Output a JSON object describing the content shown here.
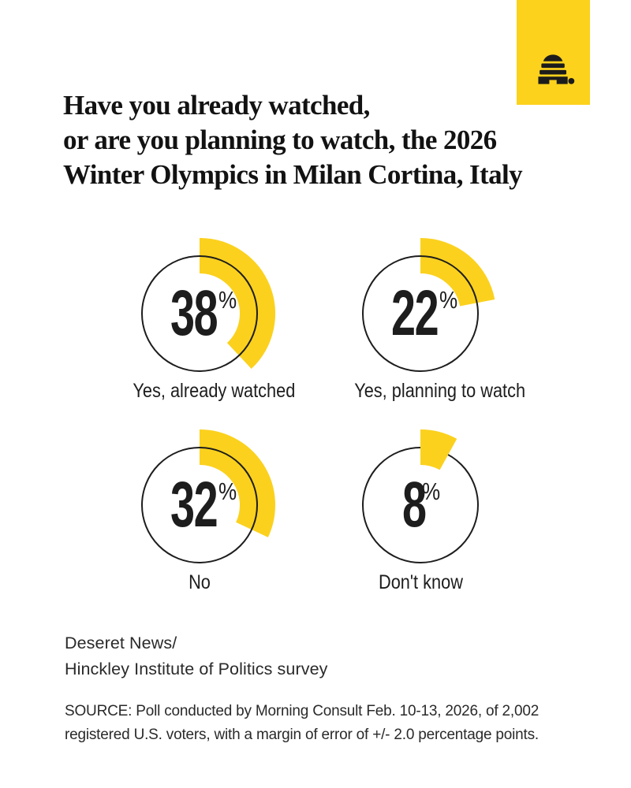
{
  "brand": {
    "logo_icon": "beehive-icon",
    "logo_box_color": "#fcd21c",
    "logo_glyph_color": "#1c1c1c"
  },
  "header": {
    "title": "Have you already watched,\nor are you planning to watch, the 2026\nWinter Olympics in Milan Cortina, Italy"
  },
  "chart_data": {
    "type": "pie",
    "variant": "donut-gauge-grid",
    "title": "Have you already watched, or are you planning to watch, the 2026 Winter Olympics in Milan Cortina, Italy",
    "unit": "%",
    "scale_max": 100,
    "arc_start": "top",
    "arc_direction": "clockwise",
    "arc_color": "#fbd11e",
    "ring_color": "#1d1d1d",
    "categories": [
      "Yes, already watched",
      "Yes, planning to watch",
      "No",
      "Don't know"
    ],
    "values": [
      38,
      22,
      32,
      8
    ],
    "donuts": [
      {
        "label": "Yes, already watched",
        "value": 38
      },
      {
        "label": "Yes, planning to watch",
        "value": 22
      },
      {
        "label": "No",
        "value": 32
      },
      {
        "label": "Don't know",
        "value": 8
      }
    ],
    "percent_symbol": "%",
    "legend": "none",
    "grid": "off"
  },
  "attribution": {
    "text": "Deseret News/\nHinckley Institute of Politics survey"
  },
  "source": {
    "text": "SOURCE: Poll conducted by Morning Consult Feb. 10-13, 2026, of 2,002\nregistered U.S. voters, with a margin of error of +/- 2.0 percentage points."
  }
}
